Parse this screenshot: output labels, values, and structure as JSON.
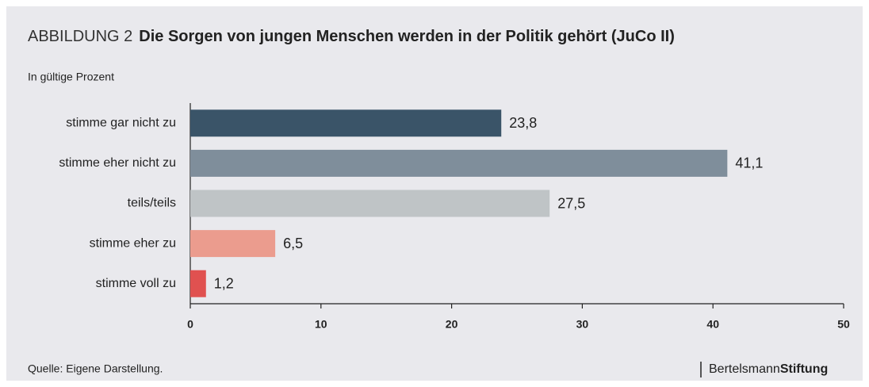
{
  "chart_data": {
    "type": "bar",
    "orientation": "horizontal",
    "title_prefix": "ABBILDUNG 2",
    "title": "Die Sorgen von jungen Menschen werden in der Politik gehört (JuCo II)",
    "subtitle": "In gültige Prozent",
    "categories": [
      "stimme gar nicht zu",
      "stimme eher nicht zu",
      "teils/teils",
      "stimme eher zu",
      "stimme voll zu"
    ],
    "values": [
      23.8,
      41.1,
      27.5,
      6.5,
      1.2
    ],
    "value_labels": [
      "23,8",
      "41,1",
      "27,5",
      "6,5",
      "1,2"
    ],
    "colors": [
      "#3a5468",
      "#7f8e9b",
      "#bfc4c6",
      "#eb9c8e",
      "#e05150"
    ],
    "xlim": [
      0,
      50
    ],
    "xticks": [
      0,
      10,
      20,
      30,
      40,
      50
    ],
    "source": "Quelle: Eigene Darstellung.",
    "logo": [
      "Bertelsmann",
      "Stiftung"
    ]
  }
}
